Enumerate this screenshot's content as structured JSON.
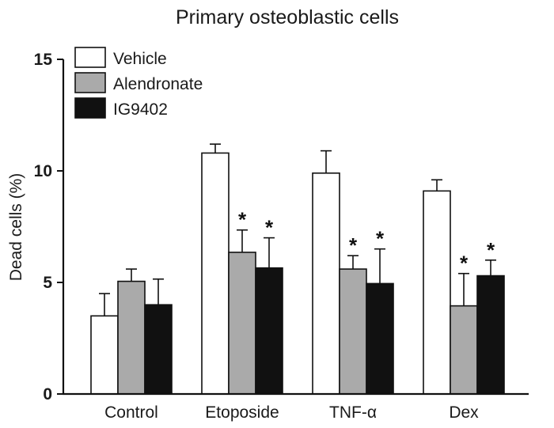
{
  "chart_data": {
    "type": "bar",
    "title": "Primary osteoblastic cells",
    "ylabel": "Dead cells (%)",
    "xlabel": "",
    "ylim": [
      0,
      15
    ],
    "yticks": [
      0,
      5,
      10,
      15
    ],
    "ytick_labels": [
      "0",
      "5",
      "10",
      "15"
    ],
    "categories": [
      "Control",
      "Etoposide",
      "TNF-α",
      "Dex"
    ],
    "legend_position": "top-left",
    "significance_marker": "*",
    "series": [
      {
        "name": "Vehicle",
        "color": "#ffffff",
        "values": [
          3.5,
          10.8,
          9.9,
          9.1
        ],
        "errors": [
          1.0,
          0.4,
          1.0,
          0.5
        ],
        "significant": [
          false,
          false,
          false,
          false
        ]
      },
      {
        "name": "Alendronate",
        "color": "#aaaaaa",
        "values": [
          5.05,
          6.35,
          5.6,
          3.95
        ],
        "errors": [
          0.55,
          1.0,
          0.6,
          1.45
        ],
        "significant": [
          false,
          true,
          true,
          true
        ]
      },
      {
        "name": "IG9402",
        "color": "#111111",
        "values": [
          4.0,
          5.65,
          4.95,
          5.3
        ],
        "errors": [
          1.15,
          1.35,
          1.55,
          0.7
        ],
        "significant": [
          false,
          true,
          true,
          true
        ]
      }
    ]
  }
}
